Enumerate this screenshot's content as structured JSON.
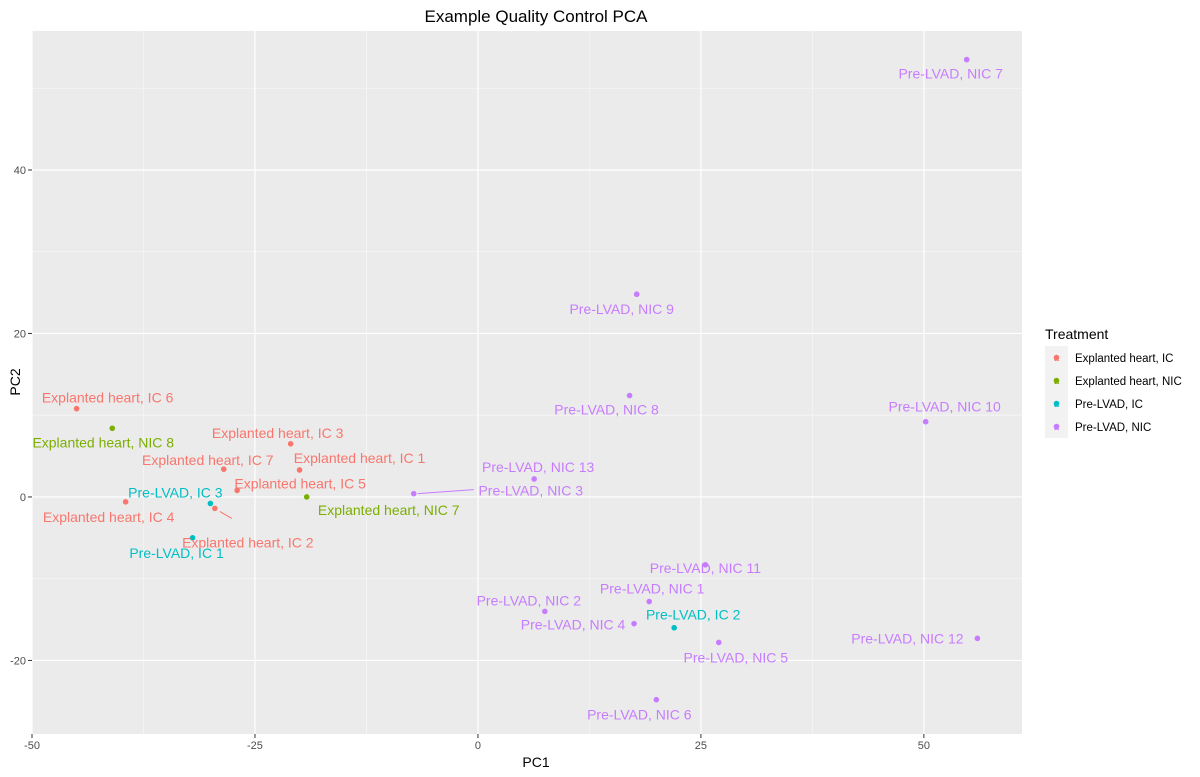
{
  "chart_data": {
    "type": "scatter",
    "title": "Example Quality Control PCA",
    "xlabel": "PC1",
    "ylabel": "PC2",
    "xlim": [
      -50,
      61
    ],
    "ylim": [
      -29,
      57
    ],
    "x_ticks": [
      -50,
      -25,
      0,
      25,
      50
    ],
    "y_ticks": [
      -20,
      0,
      20,
      40
    ],
    "grid": true,
    "legend": {
      "title": "Treatment",
      "position": "right"
    },
    "series": [
      {
        "name": "Explanted heart, IC",
        "color": "#F8766D",
        "points": [
          {
            "label": "Explanted heart, IC 1",
            "x": -20.0,
            "y": 3.3
          },
          {
            "label": "Explanted heart, IC 2",
            "x": -29.5,
            "y": -1.4
          },
          {
            "label": "Explanted heart, IC 3",
            "x": -21.0,
            "y": 6.5
          },
          {
            "label": "Explanted heart, IC 4",
            "x": -39.5,
            "y": -0.6
          },
          {
            "label": "Explanted heart, IC 5",
            "x": -27.0,
            "y": 0.8
          },
          {
            "label": "Explanted heart, IC 6",
            "x": -45.0,
            "y": 10.8
          },
          {
            "label": "Explanted heart, IC 7",
            "x": -28.5,
            "y": 3.4
          }
        ]
      },
      {
        "name": "Explanted heart, NIC",
        "color": "#7CAE00",
        "points": [
          {
            "label": "Explanted heart, NIC 7",
            "x": -19.2,
            "y": 0.0
          },
          {
            "label": "Explanted heart, NIC 8",
            "x": -41.0,
            "y": 8.4
          }
        ]
      },
      {
        "name": "Pre-LVAD, IC",
        "color": "#00BFC4",
        "points": [
          {
            "label": "Pre-LVAD, IC 1",
            "x": -32.0,
            "y": -5.0
          },
          {
            "label": "Pre-LVAD, IC 2",
            "x": 22.0,
            "y": -16.0
          },
          {
            "label": "Pre-LVAD, IC 3",
            "x": -30.0,
            "y": -0.8
          }
        ]
      },
      {
        "name": "Pre-LVAD, NIC",
        "color": "#C77CFF",
        "points": [
          {
            "label": "Pre-LVAD, NIC 1",
            "x": 19.2,
            "y": -12.8
          },
          {
            "label": "Pre-LVAD, NIC 2",
            "x": 7.5,
            "y": -14.0
          },
          {
            "label": "Pre-LVAD, NIC 3",
            "x": -7.2,
            "y": 0.4
          },
          {
            "label": "Pre-LVAD, NIC 4",
            "x": 17.5,
            "y": -15.5
          },
          {
            "label": "Pre-LVAD, NIC 5",
            "x": 27.0,
            "y": -17.8
          },
          {
            "label": "Pre-LVAD, NIC 6",
            "x": 20.0,
            "y": -24.8
          },
          {
            "label": "Pre-LVAD, NIC 7",
            "x": 54.8,
            "y": 53.5
          },
          {
            "label": "Pre-LVAD, NIC 8",
            "x": 17.0,
            "y": 12.4
          },
          {
            "label": "Pre-LVAD, NIC 9",
            "x": 17.8,
            "y": 24.8
          },
          {
            "label": "Pre-LVAD, NIC 10",
            "x": 50.2,
            "y": 9.2
          },
          {
            "label": "Pre-LVAD, NIC 11",
            "x": 25.5,
            "y": -8.3
          },
          {
            "label": "Pre-LVAD, NIC 12",
            "x": 56.0,
            "y": -17.3
          },
          {
            "label": "Pre-LVAD, NIC 13",
            "x": 6.3,
            "y": 2.2
          }
        ]
      }
    ]
  }
}
